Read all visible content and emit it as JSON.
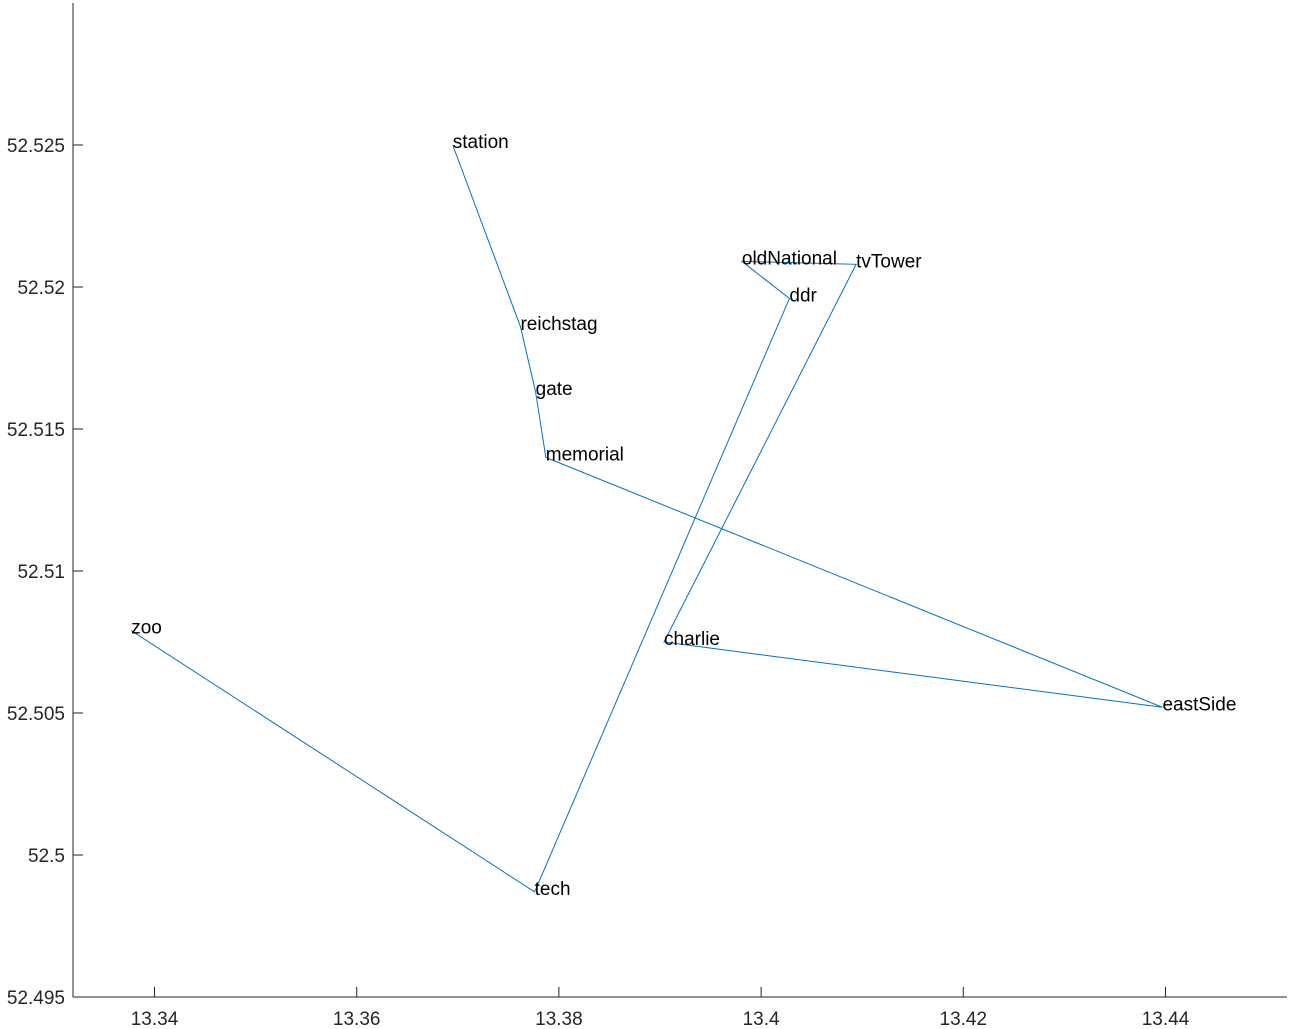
{
  "chart_data": {
    "type": "line",
    "title": "",
    "xlabel": "",
    "ylabel": "",
    "xlim": [
      13.332,
      13.452
    ],
    "ylim": [
      52.495,
      52.53
    ],
    "xticks": [
      13.34,
      13.36,
      13.38,
      13.4,
      13.42,
      13.44
    ],
    "xtick_labels": [
      "13.34",
      "13.36",
      "13.38",
      "13.4",
      "13.42",
      "13.44"
    ],
    "yticks": [
      52.495,
      52.5,
      52.505,
      52.51,
      52.515,
      52.52,
      52.525
    ],
    "ytick_labels": [
      "52.495",
      "52.5",
      "52.505",
      "52.51",
      "52.515",
      "52.52",
      "52.525"
    ],
    "grid": false,
    "line_color": "#0072BD",
    "series": [
      {
        "points": [
          {
            "label": "station",
            "x": 13.3695,
            "y": 52.525
          },
          {
            "label": "reichstag",
            "x": 13.3762,
            "y": 52.5186
          },
          {
            "label": "gate",
            "x": 13.3777,
            "y": 52.5163
          },
          {
            "label": "memorial",
            "x": 13.3787,
            "y": 52.514
          },
          {
            "label": "eastSide",
            "x": 13.4397,
            "y": 52.5052
          },
          {
            "label": "charlie",
            "x": 13.3904,
            "y": 52.5075
          },
          {
            "label": "tvTower",
            "x": 13.4094,
            "y": 52.5208
          },
          {
            "label": "oldNational",
            "x": 13.3981,
            "y": 52.5209
          },
          {
            "label": "ddr",
            "x": 13.4028,
            "y": 52.5196
          },
          {
            "label": "tech",
            "x": 13.3776,
            "y": 52.4987
          },
          {
            "label": "zoo",
            "x": 13.3377,
            "y": 52.5079
          }
        ]
      }
    ]
  }
}
